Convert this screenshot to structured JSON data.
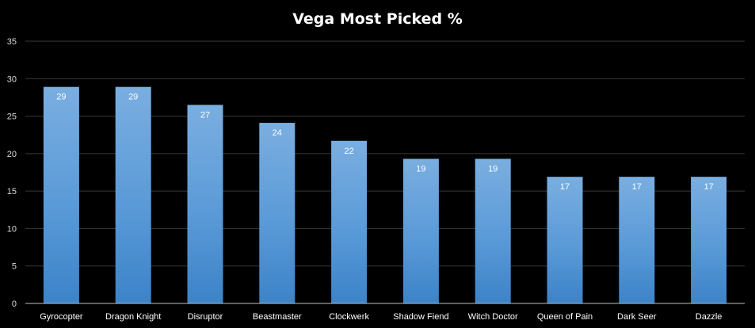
{
  "chart_data": {
    "type": "bar",
    "title": "Vega Most Picked %",
    "categories": [
      "Gyrocopter",
      "Dragon Knight",
      "Disruptor",
      "Beastmaster",
      "Clockwerk",
      "Shadow Fiend",
      "Witch Doctor",
      "Queen of Pain",
      "Dark Seer",
      "Dazzle"
    ],
    "values": [
      29,
      29,
      27,
      24,
      22,
      19,
      19,
      17,
      17,
      17
    ],
    "bar_values": [
      28.9,
      28.9,
      26.5,
      24.1,
      21.7,
      19.3,
      19.3,
      16.9,
      16.9,
      16.9
    ],
    "data_labels": [
      "29",
      "29",
      "27",
      "24",
      "22",
      "19",
      "19",
      "17",
      "17",
      "17"
    ],
    "ylim": [
      0,
      35
    ],
    "yticks": [
      0,
      5,
      10,
      15,
      20,
      25,
      30,
      35
    ],
    "grid": true,
    "legend": "none",
    "colors": {
      "bar_top": "#7aaee0",
      "bar_bottom": "#3c83c8",
      "background": "#000000",
      "text": "#ffffff"
    }
  }
}
